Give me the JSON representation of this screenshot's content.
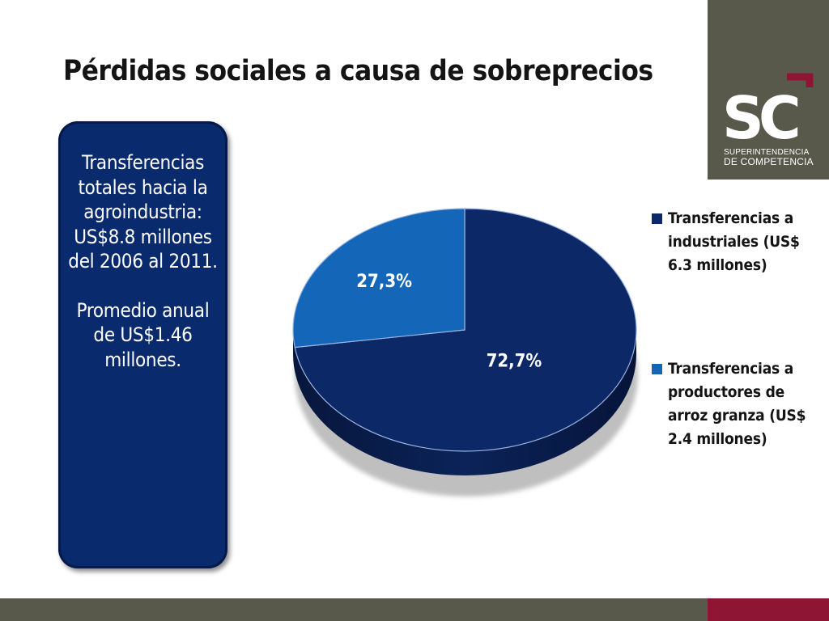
{
  "slide": {
    "title": "Pérdidas sociales a causa de sobreprecios"
  },
  "logo": {
    "letters": "SC",
    "line1": "SUPERINTENDENCIA",
    "line2": "DE COMPETENCIA",
    "bg_color": "#58594a",
    "accent_color": "#8e1634"
  },
  "info_box": {
    "paragraph1": "Transferencias totales hacia la agroindustria: US$8.8 millones del 2006 al 2011.",
    "paragraph2": "Promedio anual de US$1.46 millones."
  },
  "chart_data": {
    "type": "pie",
    "title": "",
    "series": [
      {
        "name": "Transferencias a industriales (US$ 6.3 millones)",
        "value": 72.7,
        "label": "72,7%",
        "color": "#0c2866"
      },
      {
        "name": "Transferencias a productores de arroz granza (US$ 2.4 millones)",
        "value": 27.3,
        "label": "27,3%",
        "color": "#1467b8"
      }
    ],
    "legend_position": "right",
    "style": "3d"
  }
}
